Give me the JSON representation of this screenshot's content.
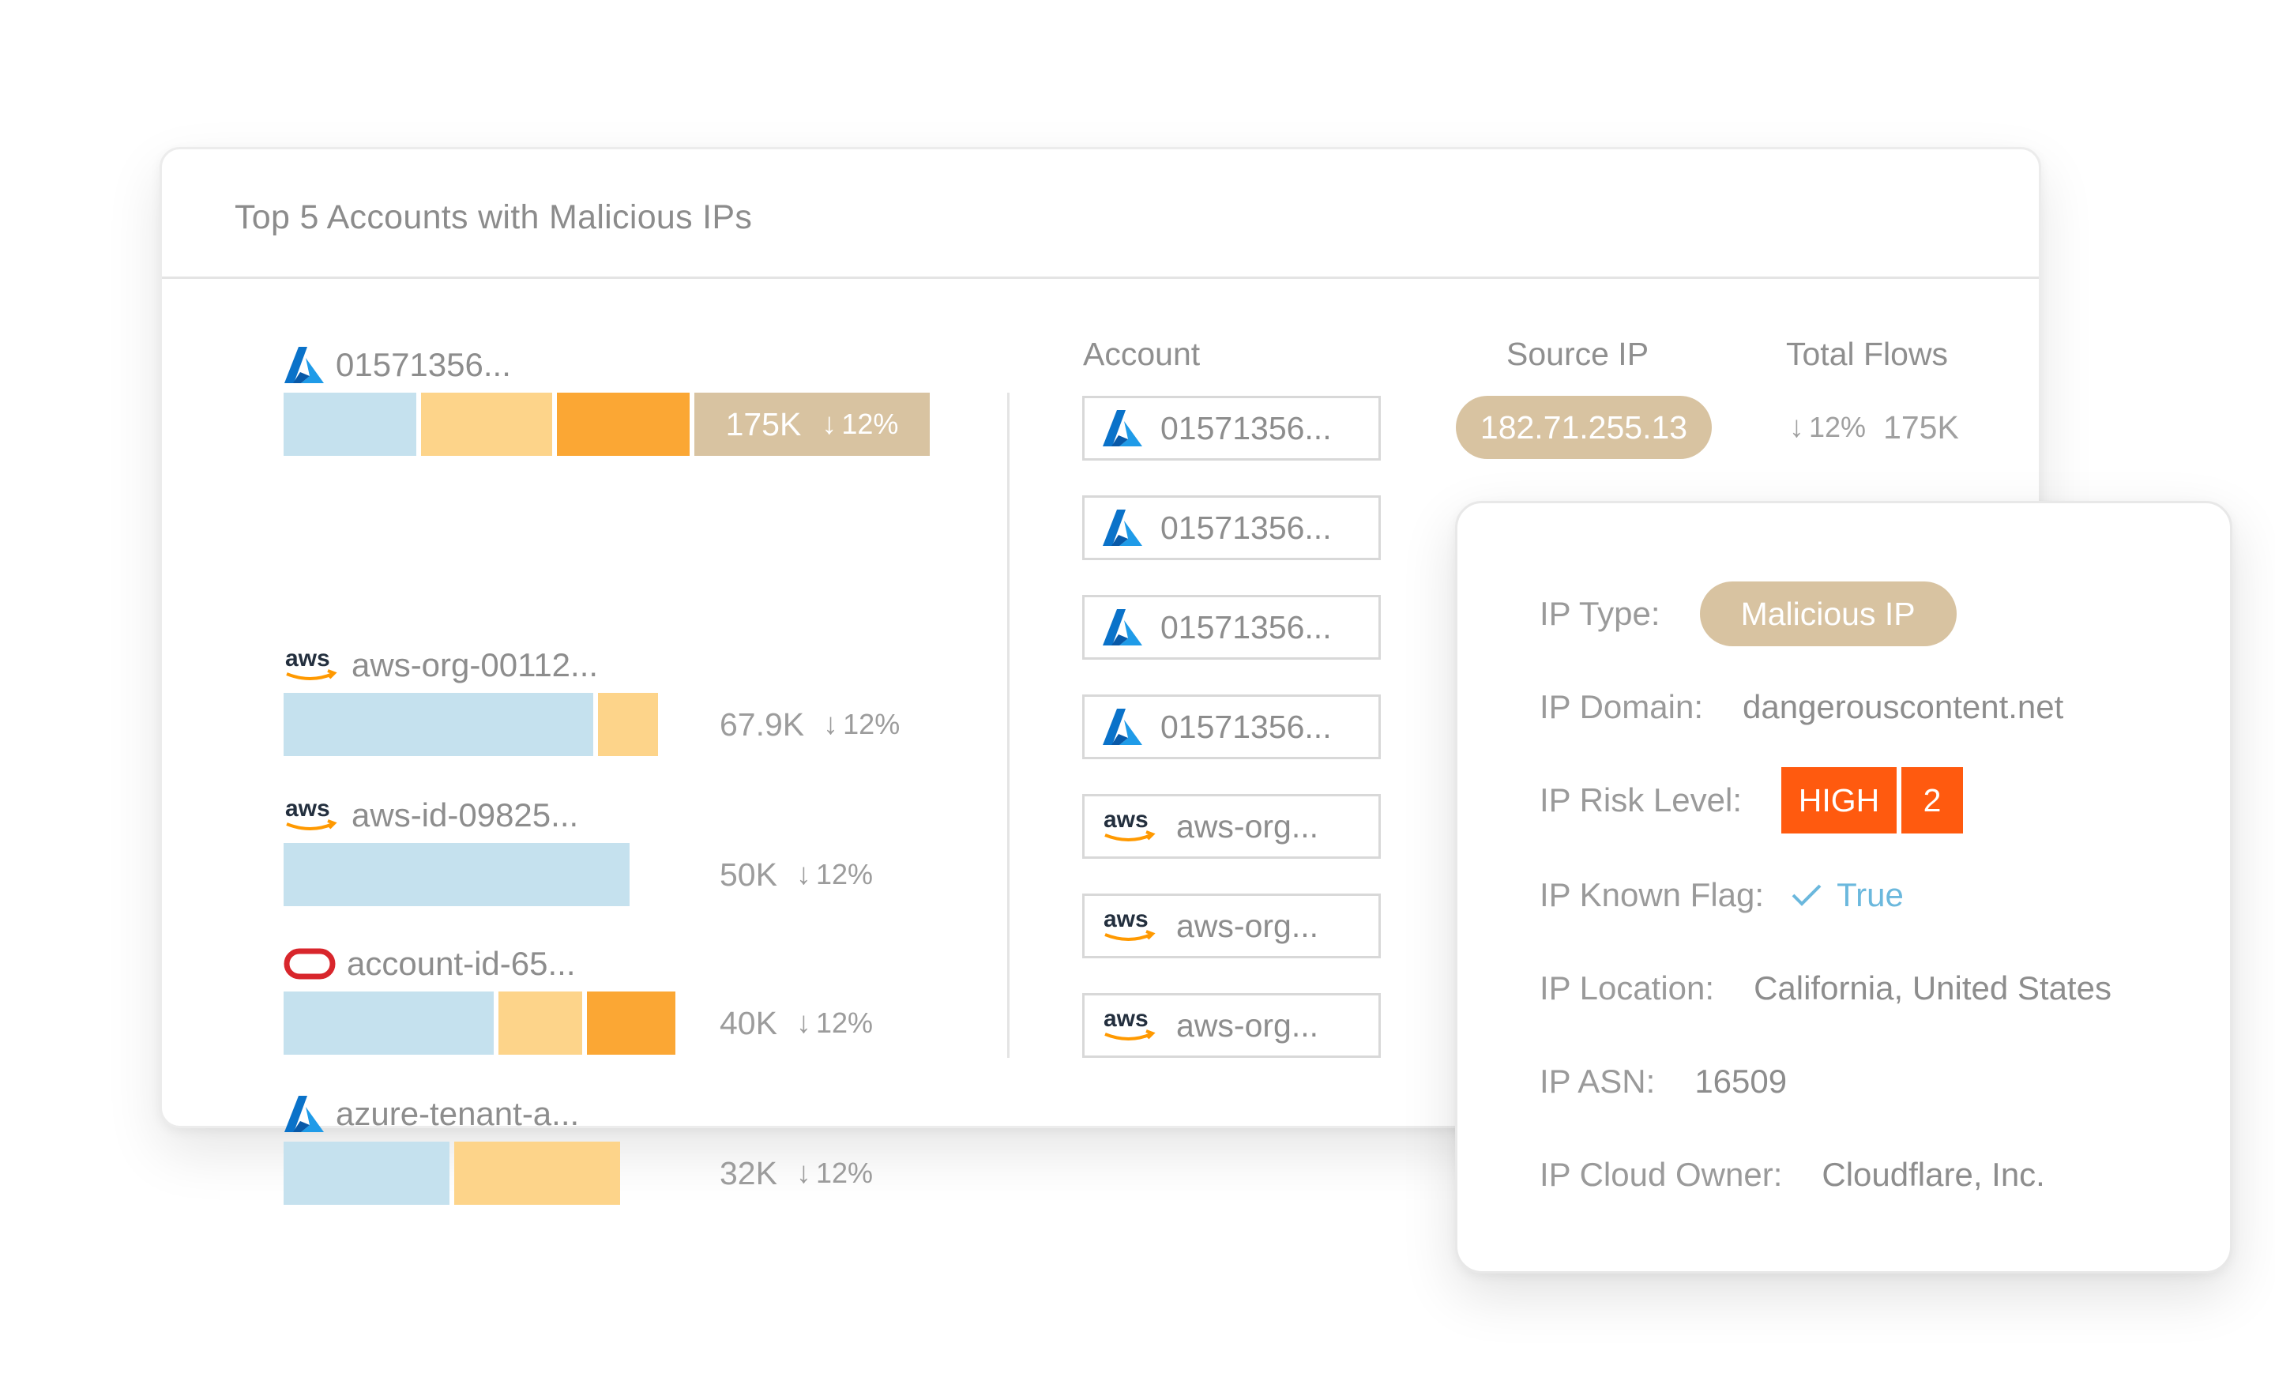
{
  "card": {
    "title": "Top 5 Accounts with Malicious IPs"
  },
  "colors": {
    "bar_blue": "#c5e1ee",
    "bar_peach": "#fdd48a",
    "bar_orange": "#fba734",
    "pill_tan": "#d8c3a1",
    "risk_orange": "#ff5a0f",
    "azure_blue": "#0a72c9",
    "oracle_red": "#d8262c",
    "true_blue": "#6bb8dd"
  },
  "accounts": [
    {
      "provider": "azure-icon",
      "name": "01571356...",
      "total": "175K",
      "change": "12%",
      "segments": [
        "blue",
        "peach",
        "orange"
      ],
      "highlighted": true
    },
    {
      "provider": "aws-icon",
      "name": "aws-org-00112...",
      "total": "67.9K",
      "change": "12%",
      "segments": [
        "blue",
        "peach"
      ],
      "highlighted": false
    },
    {
      "provider": "aws-icon",
      "name": "aws-id-09825...",
      "total": "50K",
      "change": "12%",
      "segments": [
        "blue"
      ],
      "highlighted": false
    },
    {
      "provider": "oracle-icon",
      "name": "account-id-65...",
      "total": "40K",
      "change": "12%",
      "segments": [
        "blue",
        "peach",
        "orange"
      ],
      "highlighted": false
    },
    {
      "provider": "azure-icon",
      "name": "azure-tenant-a...",
      "total": "32K",
      "change": "12%",
      "segments": [
        "blue",
        "peach"
      ],
      "highlighted": false
    }
  ],
  "table": {
    "headers": {
      "account": "Account",
      "source_ip": "Source IP",
      "total_flows": "Total Flows"
    },
    "accounts": [
      {
        "provider": "azure-icon",
        "name": "01571356..."
      },
      {
        "provider": "azure-icon",
        "name": "01571356..."
      },
      {
        "provider": "azure-icon",
        "name": "01571356..."
      },
      {
        "provider": "azure-icon",
        "name": "01571356..."
      },
      {
        "provider": "aws-icon",
        "name": "aws-org..."
      },
      {
        "provider": "aws-icon",
        "name": "aws-org..."
      },
      {
        "provider": "aws-icon",
        "name": "aws-org..."
      }
    ],
    "first_row": {
      "source_ip": "182.71.255.13",
      "change": "12%",
      "flows": "175K"
    }
  },
  "details": {
    "ip_type": {
      "label": "IP Type:",
      "value": "Malicious IP"
    },
    "ip_domain": {
      "label": "IP Domain:",
      "value": "dangerouscontent.net"
    },
    "ip_risk": {
      "label": "IP Risk Level:",
      "level": "HIGH",
      "score": "2"
    },
    "ip_known": {
      "label": "IP Known Flag:",
      "value": "True",
      "icon": "check-icon"
    },
    "ip_location": {
      "label": "IP Location:",
      "value": "California, United States"
    },
    "ip_asn": {
      "label": "IP ASN:",
      "value": "16509"
    },
    "ip_owner": {
      "label": "IP Cloud Owner:",
      "value": "Cloudflare, Inc."
    }
  }
}
